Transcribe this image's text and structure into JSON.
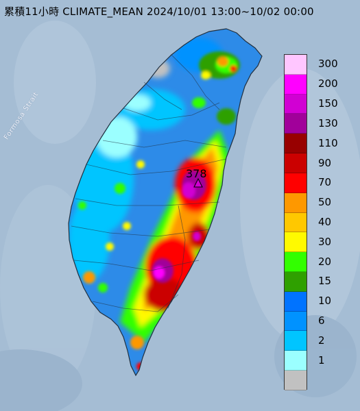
{
  "title": "累積11小時 CLIMATE_MEAN 2024/10/01 13:00~10/02 00:00",
  "strait_label": "Formosa Strait",
  "max_value_label": "378",
  "legend": [
    {
      "label": "300",
      "color": "#ffc6ff"
    },
    {
      "label": "200",
      "color": "#ff00ff"
    },
    {
      "label": "150",
      "color": "#d100d3"
    },
    {
      "label": "130",
      "color": "#a1009a"
    },
    {
      "label": "110",
      "color": "#980000"
    },
    {
      "label": "90",
      "color": "#cb0000"
    },
    {
      "label": "70",
      "color": "#ff0000"
    },
    {
      "label": "50",
      "color": "#fe9800"
    },
    {
      "label": "40",
      "color": "#ffc800"
    },
    {
      "label": "30",
      "color": "#fffa00"
    },
    {
      "label": "20",
      "color": "#32ff00"
    },
    {
      "label": "15",
      "color": "#2fa000"
    },
    {
      "label": "10",
      "color": "#0073ff"
    },
    {
      "label": "6",
      "color": "#0092ff"
    },
    {
      "label": "2",
      "color": "#00c5ff"
    },
    {
      "label": "1",
      "color": "#9bffff"
    },
    {
      "label": "",
      "color": "#c1c1c1"
    }
  ],
  "colors": {
    "sea": "#9eb7cf",
    "land_base": "#2d8be8",
    "outline": "#203040"
  }
}
